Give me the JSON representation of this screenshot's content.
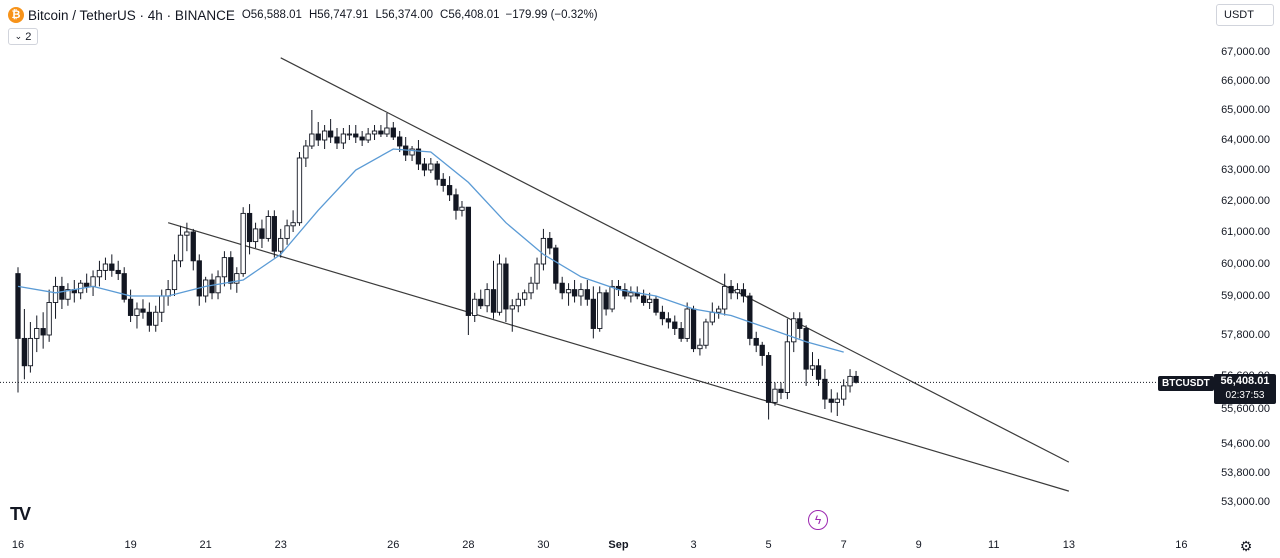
{
  "header": {
    "symbol": "Bitcoin / TetherUS · 4h · BINANCE",
    "open_label": "O",
    "open": "56,588.01",
    "high_label": "H",
    "high": "56,747.91",
    "low_label": "L",
    "low": "56,374.00",
    "close_label": "C",
    "close": "56,408.01",
    "change": "−179.99 (−0.32%)"
  },
  "indicator_toggle": {
    "count": "2"
  },
  "currency": {
    "label": "USDT"
  },
  "price_tag": {
    "symbol": "BTCUSDT",
    "price": "56,408.01",
    "countdown": "02:37:53"
  },
  "colors": {
    "up": "#ffffff",
    "down": "#131722",
    "wick": "#131722",
    "ma": "#5b9bd5",
    "trendline": "#3b3b3b",
    "accent": "#9c27b0"
  },
  "icons": [
    "bitcoin-logo-icon",
    "chevron-down-icon",
    "tradingview-logo-icon",
    "flash-icon",
    "gear-icon"
  ],
  "chart_data": {
    "type": "candlestick",
    "title": "Bitcoin / TetherUS · 4h · BINANCE",
    "y_ticks": [
      "67,000.00",
      "66,000.00",
      "65,000.00",
      "64,000.00",
      "63,000.00",
      "62,000.00",
      "61,000.00",
      "60,000.00",
      "59,000.00",
      "57,800.00",
      "56,600.00",
      "55,600.00",
      "54,600.00",
      "53,800.00",
      "53,000.00"
    ],
    "x_ticks": [
      "16",
      "19",
      "21",
      "23",
      "26",
      "28",
      "30",
      "Sep",
      "3",
      "5",
      "7",
      "9",
      "11",
      "13",
      "16"
    ],
    "x_tick_day_index": [
      16,
      19,
      21,
      23,
      26,
      28,
      30,
      32,
      34,
      36,
      38,
      40,
      42,
      44,
      47
    ],
    "x_unit": "days since Aug 1 (Aug 16 = 16, Sep 1 = 32)",
    "last_price": 56408.01,
    "candles": [
      [
        16.0,
        59700,
        59900,
        56100,
        57700
      ],
      [
        16.17,
        57700,
        58600,
        56500,
        56900
      ],
      [
        16.33,
        56900,
        58200,
        56700,
        57700
      ],
      [
        16.5,
        57700,
        58400,
        57300,
        58000
      ],
      [
        16.67,
        58000,
        58500,
        57400,
        57800
      ],
      [
        16.83,
        57800,
        59200,
        57600,
        58800
      ],
      [
        17.0,
        58800,
        59600,
        58300,
        59300
      ],
      [
        17.17,
        59300,
        59600,
        58600,
        58900
      ],
      [
        17.33,
        58900,
        59400,
        58700,
        59200
      ],
      [
        17.5,
        59200,
        59500,
        58800,
        59100
      ],
      [
        17.67,
        59100,
        59500,
        58900,
        59400
      ],
      [
        17.83,
        59400,
        59700,
        59100,
        59300
      ],
      [
        18.0,
        59300,
        59800,
        59000,
        59600
      ],
      [
        18.17,
        59600,
        60100,
        59300,
        59800
      ],
      [
        18.33,
        59800,
        60200,
        59500,
        60000
      ],
      [
        18.5,
        60000,
        60300,
        59600,
        59800
      ],
      [
        18.67,
        59800,
        60100,
        59500,
        59700
      ],
      [
        18.83,
        59700,
        59900,
        58800,
        58900
      ],
      [
        19.0,
        58900,
        59200,
        58200,
        58400
      ],
      [
        19.17,
        58400,
        58800,
        58000,
        58600
      ],
      [
        19.33,
        58600,
        58900,
        58300,
        58500
      ],
      [
        19.5,
        58500,
        58800,
        57900,
        58100
      ],
      [
        19.67,
        58100,
        58700,
        57900,
        58500
      ],
      [
        19.83,
        58500,
        59200,
        58200,
        59000
      ],
      [
        20.0,
        59000,
        59500,
        58700,
        59200
      ],
      [
        20.17,
        59200,
        60300,
        59000,
        60100
      ],
      [
        20.33,
        60100,
        61200,
        59900,
        60900
      ],
      [
        20.5,
        60900,
        61300,
        60400,
        61000
      ],
      [
        20.67,
        61000,
        61100,
        59800,
        60100
      ],
      [
        20.83,
        60100,
        60300,
        58700,
        59000
      ],
      [
        21.0,
        59000,
        59600,
        58800,
        59500
      ],
      [
        21.17,
        59500,
        59700,
        58900,
        59100
      ],
      [
        21.33,
        59100,
        59800,
        58900,
        59600
      ],
      [
        21.5,
        59600,
        60400,
        59300,
        60200
      ],
      [
        21.67,
        60200,
        60400,
        59200,
        59400
      ],
      [
        21.83,
        59400,
        59900,
        59100,
        59700
      ],
      [
        22.0,
        59700,
        61800,
        59600,
        61600
      ],
      [
        22.17,
        61600,
        61900,
        60300,
        60700
      ],
      [
        22.33,
        60700,
        61300,
        60500,
        61100
      ],
      [
        22.5,
        61100,
        61400,
        60500,
        60800
      ],
      [
        22.67,
        60800,
        61700,
        60700,
        61500
      ],
      [
        22.83,
        61500,
        61700,
        60200,
        60400
      ],
      [
        23.0,
        60400,
        61100,
        60200,
        60800
      ],
      [
        23.17,
        60800,
        61400,
        60600,
        61200
      ],
      [
        23.33,
        61200,
        61700,
        61000,
        61300
      ],
      [
        23.5,
        61300,
        63600,
        61200,
        63400
      ],
      [
        23.67,
        63400,
        64000,
        63100,
        63800
      ],
      [
        23.83,
        63800,
        65000,
        63700,
        64200
      ],
      [
        24.0,
        64200,
        64600,
        63800,
        64000
      ],
      [
        24.17,
        64000,
        64500,
        63700,
        64300
      ],
      [
        24.33,
        64300,
        64700,
        63900,
        64100
      ],
      [
        24.5,
        64100,
        64400,
        63700,
        63900
      ],
      [
        24.67,
        63900,
        64400,
        63700,
        64200
      ],
      [
        24.83,
        64200,
        64500,
        64000,
        64200
      ],
      [
        25.0,
        64200,
        64500,
        63900,
        64100
      ],
      [
        25.17,
        64100,
        64300,
        63800,
        64000
      ],
      [
        25.33,
        64000,
        64400,
        63900,
        64200
      ],
      [
        25.5,
        64200,
        64500,
        64000,
        64300
      ],
      [
        25.67,
        64300,
        64500,
        64100,
        64200
      ],
      [
        25.83,
        64200,
        64900,
        64100,
        64400
      ],
      [
        26.0,
        64400,
        64600,
        64000,
        64100
      ],
      [
        26.17,
        64100,
        64300,
        63600,
        63800
      ],
      [
        26.33,
        63800,
        64100,
        63300,
        63500
      ],
      [
        26.5,
        63500,
        63800,
        63300,
        63700
      ],
      [
        26.67,
        63700,
        64000,
        63000,
        63200
      ],
      [
        26.83,
        63200,
        63400,
        62800,
        63000
      ],
      [
        27.0,
        63000,
        63400,
        62900,
        63200
      ],
      [
        27.17,
        63200,
        63300,
        62500,
        62700
      ],
      [
        27.33,
        62700,
        62900,
        62300,
        62500
      ],
      [
        27.5,
        62500,
        62800,
        62000,
        62200
      ],
      [
        27.67,
        62200,
        62400,
        61400,
        61700
      ],
      [
        27.83,
        61700,
        62000,
        61500,
        61800
      ],
      [
        28.0,
        61800,
        61800,
        57800,
        58400
      ],
      [
        28.17,
        58400,
        59100,
        58200,
        58900
      ],
      [
        28.33,
        58900,
        59200,
        58600,
        58700
      ],
      [
        28.5,
        58700,
        59400,
        58500,
        59200
      ],
      [
        28.67,
        59200,
        60100,
        58300,
        58500
      ],
      [
        28.83,
        58500,
        60300,
        58400,
        60000
      ],
      [
        29.0,
        60000,
        60200,
        58200,
        58600
      ],
      [
        29.17,
        58600,
        58900,
        57900,
        58700
      ],
      [
        29.33,
        58700,
        59100,
        58500,
        58900
      ],
      [
        29.5,
        58900,
        59200,
        58700,
        59100
      ],
      [
        29.67,
        59100,
        59600,
        58900,
        59400
      ],
      [
        29.83,
        59400,
        60200,
        59200,
        60000
      ],
      [
        30.0,
        60000,
        61100,
        59800,
        60800
      ],
      [
        30.17,
        60800,
        61000,
        60300,
        60500
      ],
      [
        30.33,
        60500,
        60600,
        59200,
        59400
      ],
      [
        30.5,
        59400,
        59600,
        58900,
        59100
      ],
      [
        30.67,
        59100,
        59400,
        58700,
        59200
      ],
      [
        30.83,
        59200,
        59500,
        58800,
        59000
      ],
      [
        31.0,
        59000,
        59400,
        58700,
        59200
      ],
      [
        31.17,
        59200,
        59500,
        58700,
        58900
      ],
      [
        31.33,
        58900,
        59300,
        57700,
        58000
      ],
      [
        31.5,
        58000,
        59300,
        57900,
        59100
      ],
      [
        31.67,
        59100,
        59200,
        58400,
        58600
      ],
      [
        31.83,
        58600,
        59500,
        58500,
        59300
      ],
      [
        32.0,
        59300,
        59500,
        59000,
        59200
      ],
      [
        32.17,
        59200,
        59400,
        58900,
        59000
      ],
      [
        32.33,
        59000,
        59300,
        58800,
        59100
      ],
      [
        32.5,
        59100,
        59300,
        58900,
        59000
      ],
      [
        32.67,
        59000,
        59200,
        58700,
        58800
      ],
      [
        32.83,
        58800,
        59100,
        58600,
        58900
      ],
      [
        33.0,
        58900,
        59000,
        58400,
        58500
      ],
      [
        33.17,
        58500,
        58700,
        58100,
        58300
      ],
      [
        33.33,
        58300,
        58500,
        58000,
        58200
      ],
      [
        33.5,
        58200,
        58400,
        57800,
        58000
      ],
      [
        33.67,
        58000,
        58200,
        57600,
        57700
      ],
      [
        33.83,
        57700,
        58800,
        57600,
        58600
      ],
      [
        34.0,
        58600,
        58700,
        57300,
        57400
      ],
      [
        34.17,
        57400,
        57700,
        57200,
        57500
      ],
      [
        34.33,
        57500,
        58300,
        57400,
        58200
      ],
      [
        34.5,
        58200,
        58800,
        58100,
        58500
      ],
      [
        34.67,
        58500,
        58700,
        58300,
        58600
      ],
      [
        34.83,
        58600,
        59700,
        58400,
        59300
      ],
      [
        35.0,
        59300,
        59500,
        58900,
        59100
      ],
      [
        35.17,
        59100,
        59400,
        58900,
        59200
      ],
      [
        35.33,
        59200,
        59400,
        58800,
        59000
      ],
      [
        35.5,
        59000,
        59100,
        57500,
        57700
      ],
      [
        35.67,
        57700,
        57900,
        57300,
        57500
      ],
      [
        35.83,
        57500,
        57600,
        56900,
        57200
      ],
      [
        36.0,
        57200,
        57300,
        55300,
        55800
      ],
      [
        36.17,
        55800,
        56400,
        55700,
        56200
      ],
      [
        36.33,
        56200,
        56400,
        55900,
        56100
      ],
      [
        36.5,
        56100,
        58300,
        55900,
        57600
      ],
      [
        36.67,
        57600,
        58500,
        57300,
        58300
      ],
      [
        36.83,
        58300,
        58500,
        57700,
        58000
      ],
      [
        37.0,
        58000,
        58100,
        56300,
        56800
      ],
      [
        37.17,
        56800,
        57300,
        56600,
        56900
      ],
      [
        37.33,
        56900,
        57100,
        56300,
        56500
      ],
      [
        37.5,
        56500,
        56800,
        55600,
        55900
      ],
      [
        37.67,
        55900,
        56200,
        55500,
        55800
      ],
      [
        37.83,
        55800,
        56100,
        55400,
        55900
      ],
      [
        38.0,
        55900,
        56500,
        55700,
        56300
      ],
      [
        38.17,
        56300,
        56800,
        56100,
        56588
      ],
      [
        38.33,
        56588,
        56748,
        56374,
        56408
      ]
    ],
    "moving_average": [
      [
        16.0,
        59300
      ],
      [
        17.0,
        59100
      ],
      [
        18.0,
        59300
      ],
      [
        19.0,
        59000
      ],
      [
        20.0,
        59000
      ],
      [
        21.0,
        59300
      ],
      [
        22.0,
        59500
      ],
      [
        23.0,
        60300
      ],
      [
        24.0,
        61700
      ],
      [
        25.0,
        63000
      ],
      [
        26.0,
        63700
      ],
      [
        27.0,
        63600
      ],
      [
        28.0,
        62600
      ],
      [
        29.0,
        61300
      ],
      [
        30.0,
        60300
      ],
      [
        31.0,
        59600
      ],
      [
        32.0,
        59200
      ],
      [
        33.0,
        59000
      ],
      [
        34.0,
        58600
      ],
      [
        35.0,
        58400
      ],
      [
        36.0,
        58000
      ],
      [
        37.0,
        57600
      ],
      [
        38.0,
        57300
      ]
    ],
    "trendlines": [
      {
        "name": "upper-trendline",
        "x1": 23.0,
        "y1": 66800,
        "x2": 44.0,
        "y2": 54100
      },
      {
        "name": "lower-trendline",
        "x1": 20.0,
        "y1": 61300,
        "x2": 44.0,
        "y2": 53300
      }
    ]
  }
}
